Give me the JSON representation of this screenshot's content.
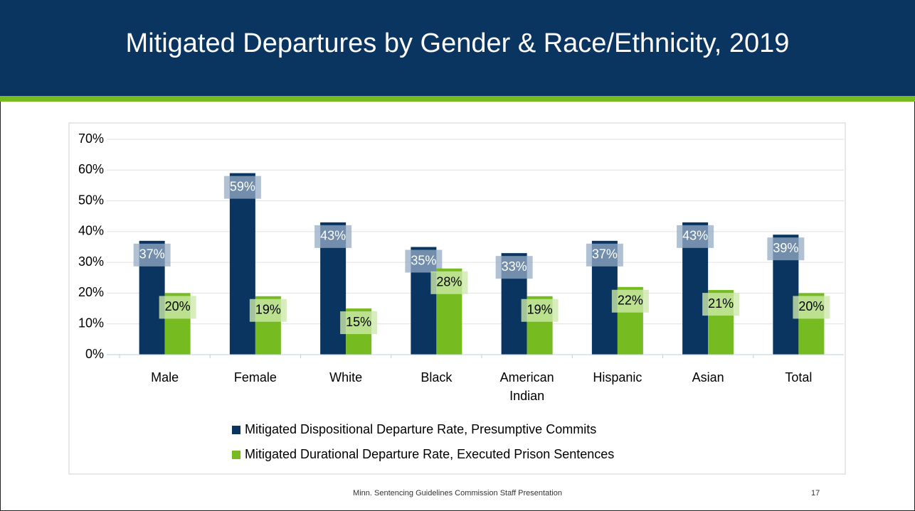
{
  "slide": {
    "title": "Mitigated Departures by Gender & Race/Ethnicity, 2019",
    "footer": "Minn. Sentencing Guidelines Commission Staff Presentation",
    "page_number": "17"
  },
  "chart_data": {
    "type": "bar",
    "categories": [
      "Male",
      "Female",
      "White",
      "Black",
      "American Indian",
      "Hispanic",
      "Asian",
      "Total"
    ],
    "series": [
      {
        "name": "Mitigated Dispositional Departure Rate, Presumptive Commits",
        "color": "#0b3561",
        "values": [
          37,
          59,
          43,
          35,
          33,
          37,
          43,
          39
        ],
        "value_labels": [
          "37%",
          "59%",
          "43%",
          "35%",
          "33%",
          "37%",
          "43%",
          "39%"
        ]
      },
      {
        "name": "Mitigated Durational Departure Rate, Executed Prison Sentences",
        "color": "#76bc21",
        "values": [
          20,
          19,
          15,
          28,
          19,
          22,
          21,
          20
        ],
        "value_labels": [
          "20%",
          "19%",
          "15%",
          "28%",
          "19%",
          "22%",
          "21%",
          "20%"
        ]
      }
    ],
    "ylim": [
      0,
      70
    ],
    "yticks": [
      {
        "value": 0,
        "label": "0%"
      },
      {
        "value": 10,
        "label": "10%"
      },
      {
        "value": 20,
        "label": "20%"
      },
      {
        "value": 30,
        "label": "30%"
      },
      {
        "value": 40,
        "label": "40%"
      },
      {
        "value": 50,
        "label": "50%"
      },
      {
        "value": 60,
        "label": "60%"
      },
      {
        "value": 70,
        "label": "70%"
      }
    ],
    "grid": true,
    "legend": "bottom"
  }
}
